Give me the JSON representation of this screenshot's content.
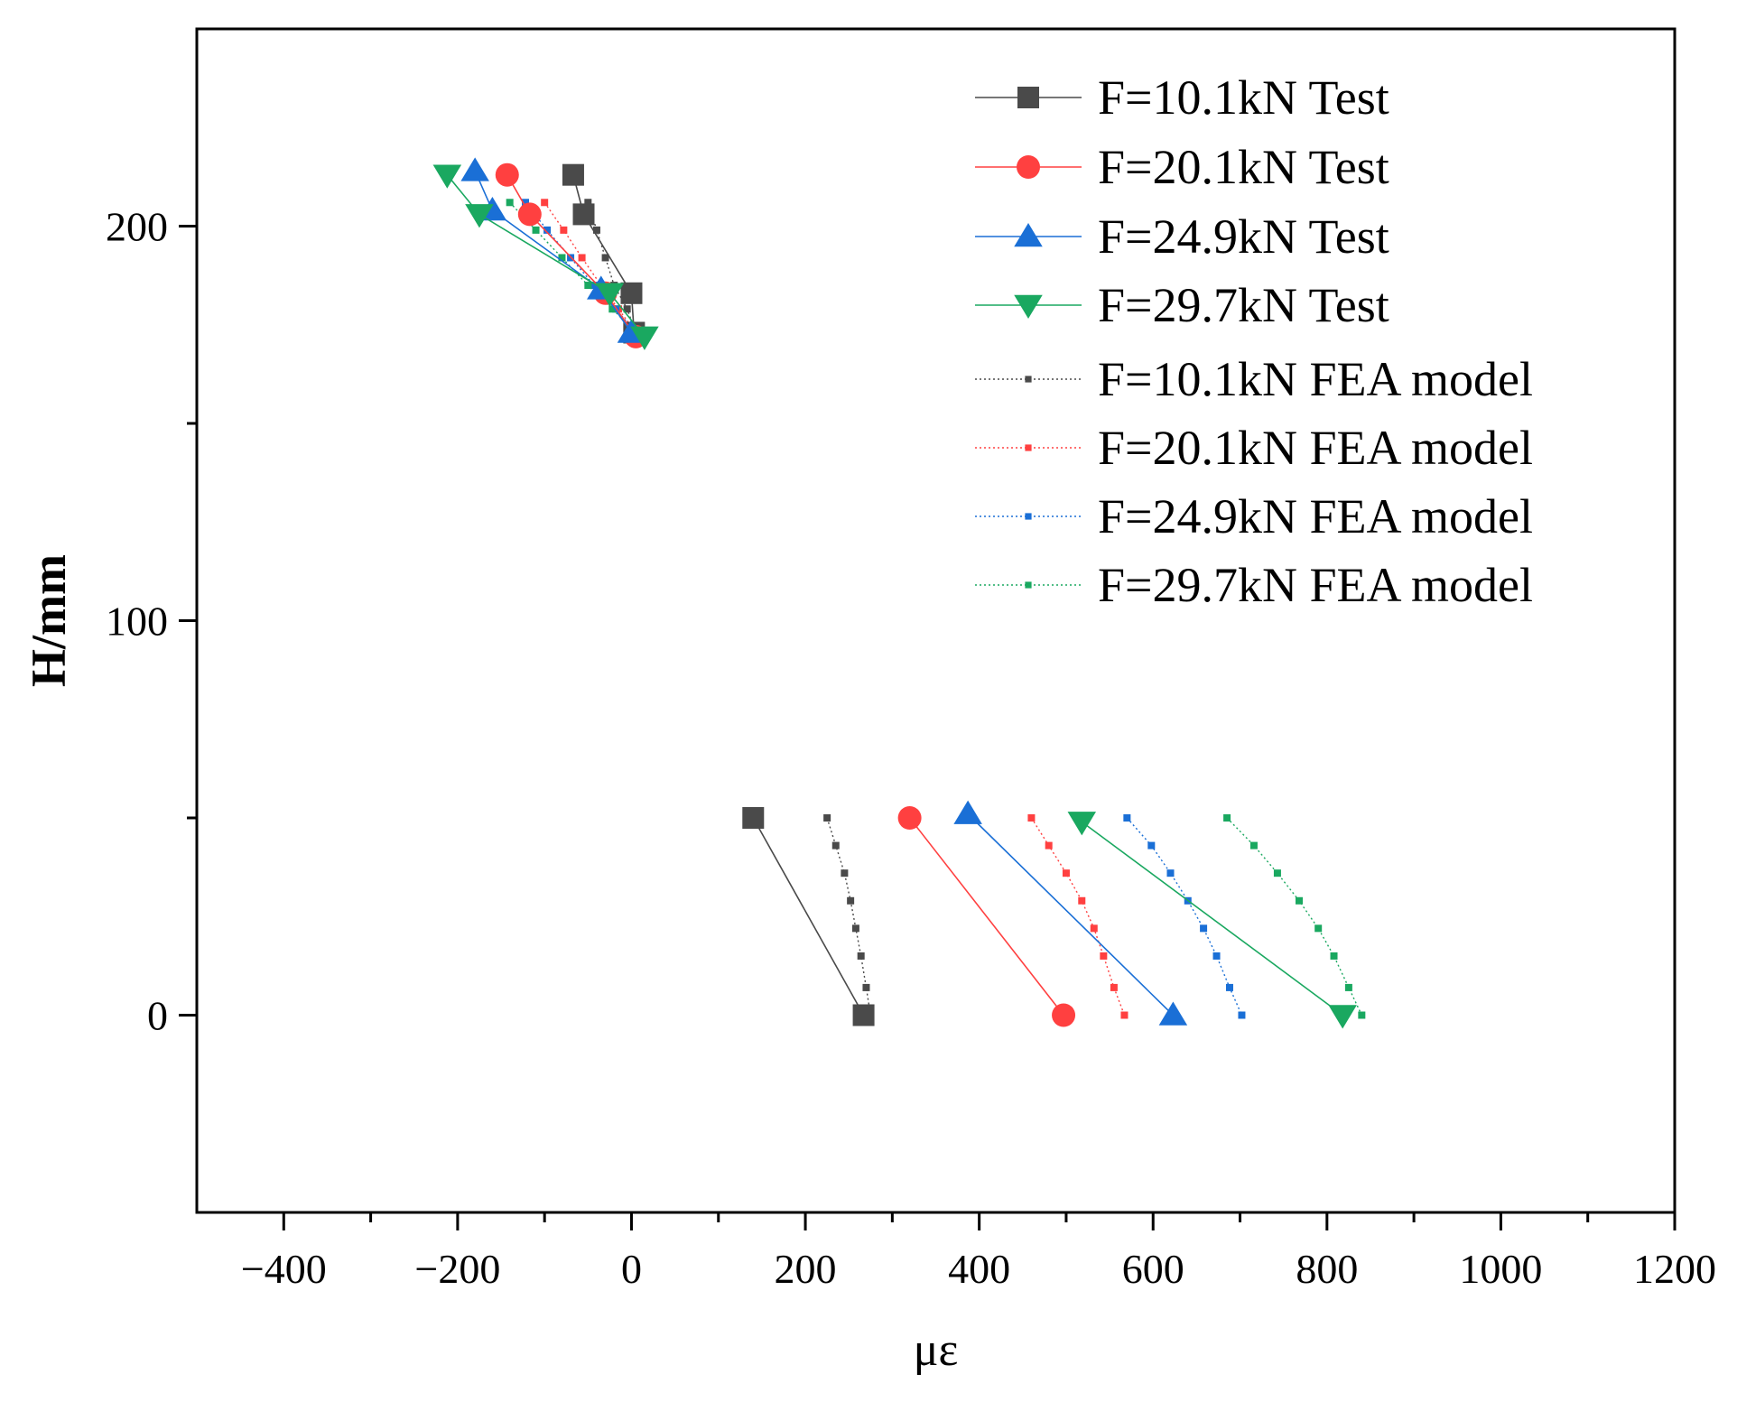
{
  "chart_data": {
    "type": "line",
    "title": "",
    "xlabel": "με",
    "ylabel": "H/mm",
    "xlim": [
      -500,
      1200
    ],
    "ylim": [
      -50,
      250
    ],
    "x_ticks": [
      -400,
      -200,
      0,
      200,
      400,
      600,
      800,
      1000,
      1200
    ],
    "x_tick_labels": [
      "−400",
      "−200",
      "0",
      "200",
      "400",
      "600",
      "800",
      "1000",
      "1200"
    ],
    "x_minor_ticks": [
      -300,
      -100,
      100,
      300,
      500,
      700,
      900,
      1100
    ],
    "y_ticks": [
      0,
      100,
      200
    ],
    "y_tick_labels": [
      "0",
      "100",
      "200"
    ],
    "y_minor_ticks": [
      50,
      150
    ],
    "grid": false,
    "legend_position": "top-right",
    "series": [
      {
        "name": "F=10.1kN Test",
        "kind": "test",
        "color": "#4a4a4a",
        "marker": "square",
        "segments": [
          [
            [
              -67,
              213
            ],
            [
              -55,
              203
            ],
            [
              0,
              183
            ],
            [
              3,
              173
            ]
          ],
          [
            [
              140,
              50
            ],
            [
              267,
              0
            ]
          ]
        ]
      },
      {
        "name": "F=20.1kN Test",
        "kind": "test",
        "color": "#ff4040",
        "marker": "circle",
        "segments": [
          [
            [
              -143,
              213
            ],
            [
              -117,
              203
            ],
            [
              -30,
              183
            ],
            [
              5,
              172
            ]
          ],
          [
            [
              320,
              50
            ],
            [
              497,
              0
            ]
          ]
        ]
      },
      {
        "name": "F=24.9kN Test",
        "kind": "test",
        "color": "#1a6fd6",
        "marker": "triangle-up",
        "segments": [
          [
            [
              -180,
              214
            ],
            [
              -160,
              204
            ],
            [
              -35,
              184
            ],
            [
              0,
              173
            ]
          ],
          [
            [
              387,
              51
            ],
            [
              623,
              0
            ]
          ]
        ]
      },
      {
        "name": "F=29.7kN Test",
        "kind": "test",
        "color": "#1aa860",
        "marker": "triangle-down",
        "segments": [
          [
            [
              -212,
              213
            ],
            [
              -175,
              203
            ],
            [
              -25,
              183
            ],
            [
              15,
              172
            ]
          ],
          [
            [
              518,
              49
            ],
            [
              818,
              0
            ]
          ]
        ]
      },
      {
        "name": "F=10.1kN FEA model",
        "kind": "fea",
        "color": "#4a4a4a",
        "marker": "small-square",
        "segments": [
          [
            [
              -50,
              206
            ],
            [
              -40,
              199
            ],
            [
              -30,
              192
            ],
            [
              -20,
              185
            ],
            [
              -5,
              179
            ],
            [
              5,
              173
            ]
          ],
          [
            [
              225,
              50
            ],
            [
              235,
              43
            ],
            [
              245,
              36
            ],
            [
              252,
              29
            ],
            [
              258,
              22
            ],
            [
              264,
              15
            ],
            [
              270,
              7
            ],
            [
              275,
              0
            ]
          ]
        ]
      },
      {
        "name": "F=20.1kN FEA model",
        "kind": "fea",
        "color": "#ff4040",
        "marker": "small-square",
        "segments": [
          [
            [
              -100,
              206
            ],
            [
              -78,
              199
            ],
            [
              -57,
              192
            ],
            [
              -35,
              185
            ],
            [
              -15,
              179
            ],
            [
              5,
              173
            ]
          ],
          [
            [
              460,
              50
            ],
            [
              480,
              43
            ],
            [
              500,
              36
            ],
            [
              518,
              29
            ],
            [
              532,
              22
            ],
            [
              543,
              15
            ],
            [
              555,
              7
            ],
            [
              567,
              0
            ]
          ]
        ]
      },
      {
        "name": "F=24.9kN FEA model",
        "kind": "fea",
        "color": "#1a6fd6",
        "marker": "small-square",
        "segments": [
          [
            [
              -122,
              206
            ],
            [
              -97,
              199
            ],
            [
              -70,
              192
            ],
            [
              -43,
              185
            ],
            [
              -18,
              179
            ],
            [
              5,
              173
            ]
          ],
          [
            [
              570,
              50
            ],
            [
              598,
              43
            ],
            [
              620,
              36
            ],
            [
              640,
              29
            ],
            [
              658,
              22
            ],
            [
              673,
              15
            ],
            [
              688,
              7
            ],
            [
              702,
              0
            ]
          ]
        ]
      },
      {
        "name": "F=29.7kN FEA model",
        "kind": "fea",
        "color": "#1aa860",
        "marker": "small-square",
        "segments": [
          [
            [
              -140,
              206
            ],
            [
              -110,
              199
            ],
            [
              -80,
              192
            ],
            [
              -50,
              185
            ],
            [
              -22,
              179
            ],
            [
              5,
              173
            ]
          ],
          [
            [
              685,
              50
            ],
            [
              716,
              43
            ],
            [
              743,
              36
            ],
            [
              768,
              29
            ],
            [
              790,
              22
            ],
            [
              808,
              15
            ],
            [
              825,
              7
            ],
            [
              840,
              0
            ]
          ]
        ]
      }
    ]
  }
}
